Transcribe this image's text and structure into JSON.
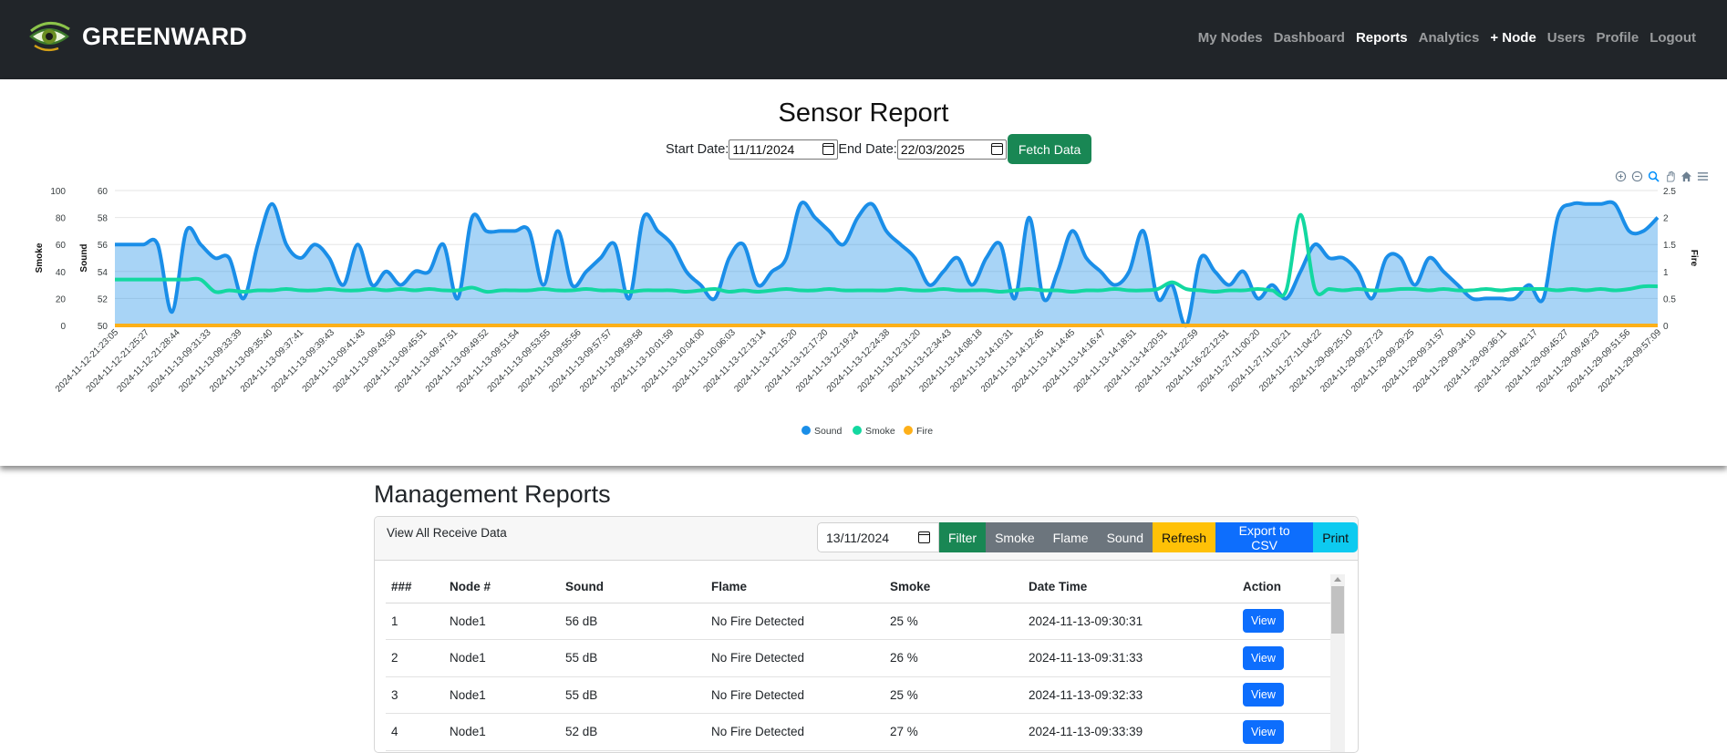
{
  "brand": {
    "name": "GREENWARD",
    "logo_icon": "eye-logo-icon"
  },
  "nav": {
    "items": [
      {
        "label": "My Nodes",
        "active": false
      },
      {
        "label": "Dashboard",
        "active": false
      },
      {
        "label": "Reports",
        "active": true
      },
      {
        "label": "Analytics",
        "active": false
      },
      {
        "label": "+ Node",
        "active": true
      },
      {
        "label": "Users",
        "active": false
      },
      {
        "label": "Profile",
        "active": false
      },
      {
        "label": "Logout",
        "active": false
      }
    ]
  },
  "report": {
    "title": "Sensor Report",
    "start_label": "Start Date:",
    "start_value": "11/11/2024",
    "end_label": "End Date:",
    "end_value": "22/03/2025",
    "fetch_label": "Fetch Data",
    "toolbar_icons": [
      "zoom-in-icon",
      "zoom-out-icon",
      "zoom-select-icon",
      "pan-hand-icon",
      "home-icon",
      "menu-icon"
    ]
  },
  "chart_data": {
    "type": "area",
    "title": "",
    "xlabel": "",
    "y_axes": [
      {
        "label": "Smoke",
        "side": "left",
        "range": [
          0,
          100
        ],
        "ticks": [
          0,
          20,
          40,
          60,
          80,
          100
        ]
      },
      {
        "label": "Sound",
        "side": "left",
        "range": [
          50,
          60
        ],
        "ticks": [
          50,
          52,
          54,
          56,
          58,
          60
        ]
      },
      {
        "label": "Fire",
        "side": "right",
        "range": [
          0,
          2.5
        ],
        "ticks": [
          0,
          0.5,
          1,
          1.5,
          2,
          2.5
        ]
      }
    ],
    "grid": true,
    "legend_position": "bottom-center",
    "x_tick_labels": [
      "2024-11-12-21:23:05",
      "2024-11-12-21:25:27",
      "2024-11-12-21:28:44",
      "2024-11-13-09:31:33",
      "2024-11-13-09:33:39",
      "2024-11-13-09:35:40",
      "2024-11-13-09:37:41",
      "2024-11-13-09:39:43",
      "2024-11-13-09:41:43",
      "2024-11-13-09:43:50",
      "2024-11-13-09:45:51",
      "2024-11-13-09:47:51",
      "2024-11-13-09:49:52",
      "2024-11-13-09:51:54",
      "2024-11-13-09:53:55",
      "2024-11-13-09:55:56",
      "2024-11-13-09:57:57",
      "2024-11-13-09:59:58",
      "2024-11-13-10:01:59",
      "2024-11-13-10:04:00",
      "2024-11-13-10:06:03",
      "2024-11-13-12:13:14",
      "2024-11-13-12:15:20",
      "2024-11-13-12:17:20",
      "2024-11-13-12:19:24",
      "2024-11-13-12:24:38",
      "2024-11-13-12:31:20",
      "2024-11-13-12:34:43",
      "2024-11-13-14:08:18",
      "2024-11-13-14:10:31",
      "2024-11-13-14:12:45",
      "2024-11-13-14:14:45",
      "2024-11-13-14:16:47",
      "2024-11-13-14:18:51",
      "2024-11-13-14:20:51",
      "2024-11-13-14:22:59",
      "2024-11-16-22:12:51",
      "2024-11-27-11:00:20",
      "2024-11-27-11:02:21",
      "2024-11-27-11:04:22",
      "2024-11-29-09:25:10",
      "2024-11-29-09:27:23",
      "2024-11-29-09:29:25",
      "2024-11-29-09:31:57",
      "2024-11-29-09:34:10",
      "2024-11-29-09:36:11",
      "2024-11-29-09:42:17",
      "2024-11-29-09:45:27",
      "2024-11-29-09:49:23",
      "2024-11-29-09:51:56",
      "2024-11-29-09:57:09"
    ],
    "series": [
      {
        "name": "Sound",
        "axis": "Sound",
        "color": "#1a8ee8",
        "fill": "rgba(26,142,232,0.38)",
        "values": [
          56,
          56,
          56,
          56,
          51,
          57,
          56,
          55,
          55,
          52,
          56,
          59,
          56,
          55,
          56,
          55,
          53,
          56,
          53,
          54,
          53,
          54,
          54,
          56,
          52,
          58,
          57,
          57,
          57,
          57,
          53,
          57,
          53,
          54,
          55,
          56,
          52,
          58,
          57,
          56,
          54,
          53,
          52,
          55,
          56,
          53,
          54,
          55,
          59,
          58,
          57,
          56,
          58,
          59,
          57,
          56,
          55,
          53,
          54,
          55,
          53,
          55,
          56,
          52,
          58,
          52,
          54,
          57,
          55,
          54,
          53,
          54,
          57,
          52,
          53,
          50,
          55,
          54,
          53,
          54,
          52,
          53,
          52,
          54,
          56,
          55,
          55,
          54,
          52,
          55,
          55,
          53,
          55,
          54,
          53,
          52,
          52,
          52,
          52,
          53,
          52,
          58,
          59,
          59,
          59,
          59,
          57,
          57,
          58
        ]
      },
      {
        "name": "Smoke",
        "axis": "Smoke",
        "color": "#13d8a0",
        "values": [
          34,
          34,
          34,
          34,
          34,
          34,
          34,
          25,
          26,
          25,
          26,
          26,
          27,
          26,
          26,
          27,
          26,
          26,
          27,
          26,
          27,
          26,
          27,
          26,
          26,
          28,
          25,
          26,
          26,
          26,
          27,
          26,
          26,
          27,
          26,
          26,
          25,
          26,
          26,
          26,
          25,
          26,
          27,
          25,
          26,
          25,
          26,
          27,
          26,
          26,
          27,
          26,
          26,
          26,
          26,
          27,
          26,
          26,
          27,
          26,
          26,
          26,
          25,
          26,
          27,
          26,
          26,
          25,
          26,
          26,
          27,
          26,
          26,
          27,
          32,
          27,
          26,
          25,
          26,
          26,
          27,
          26,
          26,
          82,
          27,
          27,
          26,
          27,
          26,
          26,
          27,
          27,
          26,
          27,
          26,
          26,
          27,
          26,
          27,
          27,
          27,
          26,
          27,
          26,
          27,
          26,
          27,
          29,
          29
        ]
      },
      {
        "name": "Fire",
        "axis": "Fire",
        "color": "#feb019",
        "values": [
          0,
          0,
          0,
          0,
          0,
          0,
          0,
          0,
          0,
          0,
          0,
          0,
          0,
          0,
          0,
          0,
          0,
          0,
          0,
          0,
          0,
          0,
          0,
          0,
          0,
          0,
          0,
          0,
          0,
          0,
          0,
          0,
          0,
          0,
          0,
          0,
          0,
          0,
          0,
          0,
          0,
          0,
          0,
          0,
          0,
          0,
          0,
          0,
          0,
          0,
          0,
          0,
          0,
          0,
          0,
          0,
          0,
          0,
          0,
          0,
          0,
          0,
          0,
          0,
          0,
          0,
          0,
          0,
          0,
          0,
          0,
          0,
          0,
          0,
          0,
          0,
          0,
          0,
          0,
          0,
          0,
          0,
          0,
          0,
          0,
          0,
          0,
          0,
          0,
          0,
          0,
          0,
          0,
          0,
          0,
          0,
          0,
          0,
          0,
          0,
          0,
          0,
          0,
          0,
          0,
          0,
          0,
          0,
          0
        ]
      }
    ]
  },
  "management": {
    "title": "Management Reports",
    "header_label": "View All Receive Data",
    "filter_date": "13/11/2024",
    "buttons": {
      "filter": "Filter",
      "smoke": "Smoke",
      "flame": "Flame",
      "sound": "Sound",
      "refresh": "Refresh",
      "export": "Export to CSV",
      "print": "Print"
    },
    "columns": [
      "###",
      "Node #",
      "Sound",
      "Flame",
      "Smoke",
      "Date Time",
      "Action"
    ],
    "rows": [
      {
        "id": "1",
        "node": "Node1",
        "sound": "56 dB",
        "flame": "No Fire Detected",
        "smoke": "25 %",
        "datetime": "2024-11-13-09:30:31",
        "action": "View"
      },
      {
        "id": "2",
        "node": "Node1",
        "sound": "55 dB",
        "flame": "No Fire Detected",
        "smoke": "26 %",
        "datetime": "2024-11-13-09:31:33",
        "action": "View"
      },
      {
        "id": "3",
        "node": "Node1",
        "sound": "55 dB",
        "flame": "No Fire Detected",
        "smoke": "25 %",
        "datetime": "2024-11-13-09:32:33",
        "action": "View"
      },
      {
        "id": "4",
        "node": "Node1",
        "sound": "52 dB",
        "flame": "No Fire Detected",
        "smoke": "27 %",
        "datetime": "2024-11-13-09:33:39",
        "action": "View"
      }
    ]
  }
}
